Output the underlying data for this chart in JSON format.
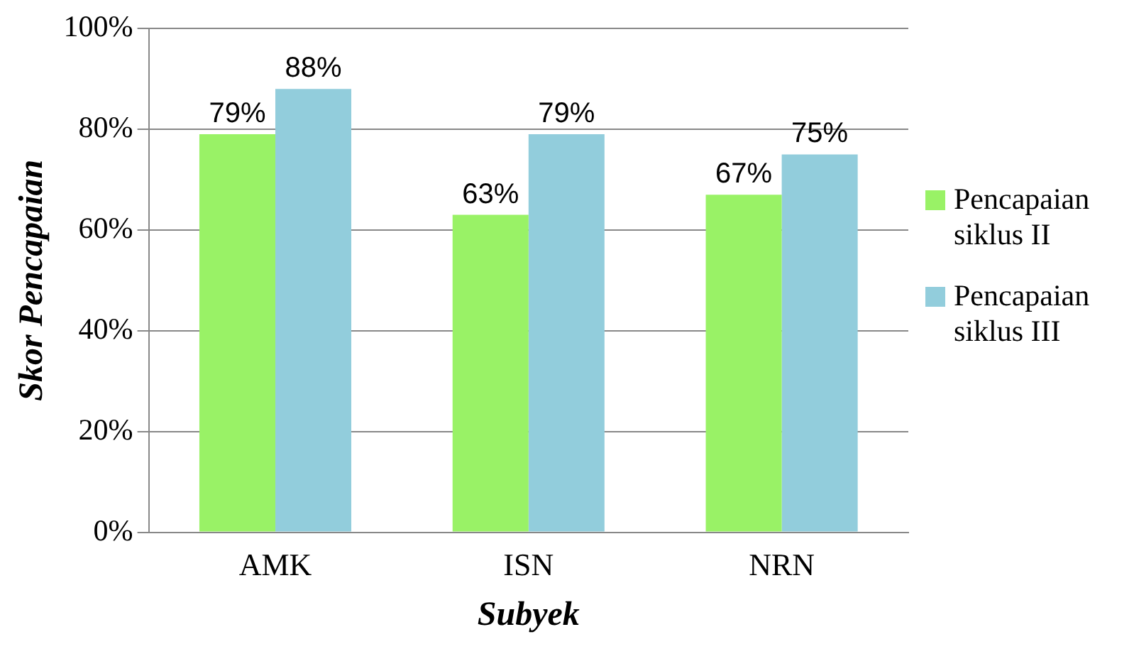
{
  "chart_data": {
    "type": "bar",
    "xlabel": "Subyek",
    "ylabel": "Skor Pencapaian",
    "categories": [
      "AMK",
      "ISN",
      "NRN"
    ],
    "series": [
      {
        "name": "Pencapaian siklus II",
        "color": "#99f266",
        "values": [
          79,
          63,
          67
        ],
        "value_labels": [
          "79%",
          "63%",
          "67%"
        ]
      },
      {
        "name": "Pencapaian siklus III",
        "color": "#92cddc",
        "values": [
          88,
          79,
          75
        ],
        "value_labels": [
          "88%",
          "79%",
          "75%"
        ]
      }
    ],
    "ylim": [
      0,
      100
    ],
    "yticks": [
      {
        "value": 0,
        "label": "0%"
      },
      {
        "value": 20,
        "label": "20%"
      },
      {
        "value": 40,
        "label": "40%"
      },
      {
        "value": 60,
        "label": "60%"
      },
      {
        "value": 80,
        "label": "80%"
      },
      {
        "value": 100,
        "label": "100%"
      }
    ],
    "grid": "y",
    "legend": "right"
  }
}
